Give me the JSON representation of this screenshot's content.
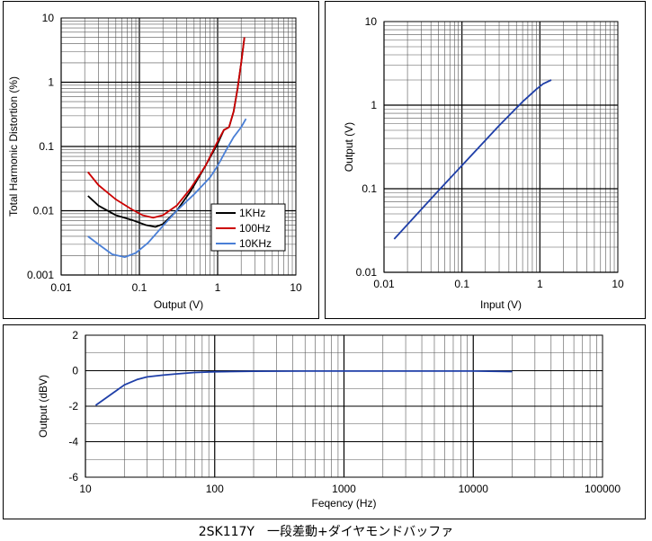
{
  "caption": "2SK117Y　一段差動+ダイヤモンドバッファ",
  "colors": {
    "panel_border": "#000000",
    "grid_major": "#000000",
    "grid_minor": "#555555",
    "line_1k": "#000000",
    "line_100": "#cc0000",
    "line_10k": "#4a7fd6",
    "line_blue": "#1f3fa8"
  },
  "chart_data": [
    {
      "id": "thd",
      "type": "line",
      "xscale": "log",
      "yscale": "log",
      "xlim": [
        0.01,
        10
      ],
      "ylim": [
        0.001,
        10
      ],
      "xlabel": "Output (V)",
      "ylabel": "Total Harmonic Distortion (%)",
      "xticks": [
        "0.01",
        "0.1",
        "1",
        "10"
      ],
      "yticks": [
        "0.001",
        "0.01",
        "0.1",
        "1",
        "10"
      ],
      "grid": true,
      "legend_position": "lower-right",
      "series": [
        {
          "name": "1KHz",
          "color": "#000000",
          "points": [
            [
              0.022,
              0.017
            ],
            [
              0.03,
              0.012
            ],
            [
              0.05,
              0.0085
            ],
            [
              0.08,
              0.0072
            ],
            [
              0.12,
              0.006
            ],
            [
              0.16,
              0.0056
            ],
            [
              0.2,
              0.0062
            ],
            [
              0.3,
              0.01
            ],
            [
              0.45,
              0.02
            ],
            [
              0.7,
              0.05
            ],
            [
              1.0,
              0.11
            ],
            [
              1.2,
              0.18
            ],
            [
              1.4,
              0.2
            ],
            [
              1.6,
              0.35
            ],
            [
              1.8,
              0.8
            ],
            [
              2.0,
              2.0
            ],
            [
              2.2,
              5.0
            ]
          ]
        },
        {
          "name": "100Hz",
          "color": "#cc0000",
          "points": [
            [
              0.022,
              0.04
            ],
            [
              0.03,
              0.025
            ],
            [
              0.05,
              0.015
            ],
            [
              0.08,
              0.0105
            ],
            [
              0.11,
              0.0085
            ],
            [
              0.15,
              0.0078
            ],
            [
              0.2,
              0.0085
            ],
            [
              0.3,
              0.012
            ],
            [
              0.45,
              0.022
            ],
            [
              0.7,
              0.05
            ],
            [
              1.0,
              0.12
            ],
            [
              1.2,
              0.18
            ],
            [
              1.4,
              0.2
            ],
            [
              1.6,
              0.35
            ],
            [
              1.8,
              0.8
            ],
            [
              2.0,
              2.0
            ],
            [
              2.2,
              5.0
            ]
          ]
        },
        {
          "name": "10KHz",
          "color": "#4a7fd6",
          "points": [
            [
              0.022,
              0.004
            ],
            [
              0.03,
              0.003
            ],
            [
              0.045,
              0.0021
            ],
            [
              0.065,
              0.0019
            ],
            [
              0.09,
              0.0022
            ],
            [
              0.13,
              0.0032
            ],
            [
              0.2,
              0.0058
            ],
            [
              0.3,
              0.01
            ],
            [
              0.5,
              0.018
            ],
            [
              0.8,
              0.033
            ],
            [
              1.0,
              0.05
            ],
            [
              1.3,
              0.09
            ],
            [
              1.6,
              0.14
            ],
            [
              2.0,
              0.2
            ],
            [
              2.3,
              0.27
            ]
          ]
        }
      ]
    },
    {
      "id": "io",
      "type": "line",
      "xscale": "log",
      "yscale": "log",
      "xlim": [
        0.01,
        10
      ],
      "ylim": [
        0.01,
        10
      ],
      "xlabel": "Input (V)",
      "ylabel": "Output (V)",
      "xticks": [
        "0.01",
        "0.1",
        "1",
        "10"
      ],
      "yticks": [
        "0.01",
        "0.1",
        "1",
        "10"
      ],
      "grid": true,
      "series": [
        {
          "color": "#1f3fa8",
          "points": [
            [
              0.0135,
              0.025
            ],
            [
              0.05,
              0.095
            ],
            [
              0.1,
              0.19
            ],
            [
              0.3,
              0.57
            ],
            [
              0.6,
              1.1
            ],
            [
              0.9,
              1.55
            ],
            [
              1.1,
              1.8
            ],
            [
              1.4,
              2.0
            ]
          ]
        }
      ]
    },
    {
      "id": "freq",
      "type": "line",
      "xscale": "log",
      "yscale": "linear",
      "xlim": [
        10,
        100000
      ],
      "ylim": [
        -6,
        2
      ],
      "xlabel": "Feqency (Hz)",
      "ylabel": "Output (dBV)",
      "xticks": [
        "10",
        "100",
        "1000",
        "10000",
        "100000"
      ],
      "yticks": [
        "-6",
        "-4",
        "-2",
        "0",
        "2"
      ],
      "grid": true,
      "series": [
        {
          "color": "#1f3fa8",
          "points": [
            [
              12,
              -1.95
            ],
            [
              15,
              -1.45
            ],
            [
              20,
              -0.8
            ],
            [
              25,
              -0.5
            ],
            [
              30,
              -0.35
            ],
            [
              40,
              -0.25
            ],
            [
              50,
              -0.18
            ],
            [
              70,
              -0.1
            ],
            [
              100,
              -0.06
            ],
            [
              200,
              -0.03
            ],
            [
              500,
              -0.02
            ],
            [
              1000,
              -0.02
            ],
            [
              10000,
              -0.02
            ],
            [
              20000,
              -0.05
            ]
          ]
        }
      ]
    }
  ]
}
